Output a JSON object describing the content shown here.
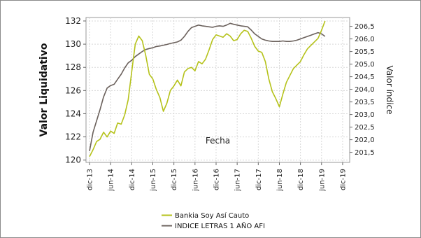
{
  "chart_data": {
    "type": "line",
    "xlabel": "Fecha",
    "ylabel_left": "Valor Liquidativo",
    "ylabel_right": "Valor índice",
    "x_ticks": [
      "dic-13",
      "jun-14",
      "dic-14",
      "jun-15",
      "dic-15",
      "jun-16",
      "dic-16",
      "jun-17",
      "dic-17",
      "jun-18",
      "dic-18",
      "jun-19",
      "dic-19"
    ],
    "y_left_ticks": [
      "120",
      "122",
      "124",
      "126",
      "128",
      "130",
      "132"
    ],
    "y_right_ticks": [
      "201,5",
      "202,0",
      "202,5",
      "203,0",
      "203,5",
      "204,0",
      "204,5",
      "205,0",
      "205,5",
      "206,0",
      "206,5"
    ],
    "ylim_left": [
      119.8,
      132.3
    ],
    "ylim_right": [
      201.1,
      206.85
    ],
    "grid": true,
    "legend_position": "bottom",
    "series": [
      {
        "name": "Bankia Soy Así Cauto",
        "axis": "left",
        "color": "#b5c21a",
        "points": [
          [
            "dic-13",
            120.3
          ],
          [
            "ene-14",
            120.9
          ],
          [
            "feb-14",
            121.6
          ],
          [
            "mar-14",
            121.8
          ],
          [
            "abr-14",
            122.4
          ],
          [
            "may-14",
            122.0
          ],
          [
            "jun-14",
            122.5
          ],
          [
            "jul-14",
            122.3
          ],
          [
            "ago-14",
            123.2
          ],
          [
            "sep-14",
            123.1
          ],
          [
            "oct-14",
            123.9
          ],
          [
            "nov-14",
            125.2
          ],
          [
            "dic-14",
            127.6
          ],
          [
            "ene-15",
            130.0
          ],
          [
            "feb-15",
            130.7
          ],
          [
            "mar-15",
            130.3
          ],
          [
            "abr-15",
            129.0
          ],
          [
            "may-15",
            127.4
          ],
          [
            "jun-15",
            127.0
          ],
          [
            "jul-15",
            126.1
          ],
          [
            "ago-15",
            125.4
          ],
          [
            "sep-15",
            124.2
          ],
          [
            "oct-15",
            124.9
          ],
          [
            "nov-15",
            126.0
          ],
          [
            "dic-15",
            126.4
          ],
          [
            "ene-16",
            126.9
          ],
          [
            "feb-16",
            126.4
          ],
          [
            "mar-16",
            127.6
          ],
          [
            "abr-16",
            127.9
          ],
          [
            "may-16",
            128.0
          ],
          [
            "jun-16",
            127.7
          ],
          [
            "jul-16",
            128.5
          ],
          [
            "ago-16",
            128.3
          ],
          [
            "sep-16",
            128.7
          ],
          [
            "oct-16",
            129.5
          ],
          [
            "nov-16",
            130.4
          ],
          [
            "dic-16",
            130.8
          ],
          [
            "ene-17",
            130.7
          ],
          [
            "feb-17",
            130.6
          ],
          [
            "mar-17",
            130.9
          ],
          [
            "abr-17",
            130.7
          ],
          [
            "may-17",
            130.3
          ],
          [
            "jun-17",
            130.4
          ],
          [
            "jul-17",
            130.9
          ],
          [
            "ago-17",
            131.2
          ],
          [
            "sep-17",
            131.1
          ],
          [
            "oct-17",
            130.5
          ],
          [
            "nov-17",
            129.8
          ],
          [
            "dic-17",
            129.4
          ],
          [
            "ene-18",
            129.3
          ],
          [
            "feb-18",
            128.5
          ],
          [
            "mar-18",
            127.0
          ],
          [
            "abr-18",
            125.9
          ],
          [
            "may-18",
            125.3
          ],
          [
            "jun-18",
            124.6
          ],
          [
            "jul-18",
            125.7
          ],
          [
            "ago-18",
            126.7
          ],
          [
            "sep-18",
            127.3
          ],
          [
            "oct-18",
            127.9
          ],
          [
            "nov-18",
            128.2
          ],
          [
            "dic-18",
            128.5
          ],
          [
            "ene-19",
            129.1
          ],
          [
            "feb-19",
            129.6
          ],
          [
            "mar-19",
            129.9
          ],
          [
            "abr-19",
            130.2
          ],
          [
            "may-19",
            130.5
          ],
          [
            "jun-19",
            131.2
          ],
          [
            "jul-19",
            132.0
          ]
        ]
      },
      {
        "name": "INDICE LETRAS 1 AÑO AFI",
        "axis": "right",
        "color": "#6b615c",
        "points": [
          [
            "dic-13",
            201.55
          ],
          [
            "ene-14",
            202.3
          ],
          [
            "feb-14",
            202.75
          ],
          [
            "mar-14",
            203.2
          ],
          [
            "abr-14",
            203.7
          ],
          [
            "may-14",
            204.05
          ],
          [
            "jun-14",
            204.15
          ],
          [
            "jul-14",
            204.2
          ],
          [
            "ago-14",
            204.4
          ],
          [
            "sep-14",
            204.6
          ],
          [
            "oct-14",
            204.85
          ],
          [
            "nov-14",
            205.05
          ],
          [
            "dic-14",
            205.15
          ],
          [
            "ene-15",
            205.3
          ],
          [
            "feb-15",
            205.4
          ],
          [
            "mar-15",
            205.5
          ],
          [
            "abr-15",
            205.58
          ],
          [
            "may-15",
            205.62
          ],
          [
            "jun-15",
            205.65
          ],
          [
            "jul-15",
            205.7
          ],
          [
            "ago-15",
            205.72
          ],
          [
            "sep-15",
            205.75
          ],
          [
            "oct-15",
            205.78
          ],
          [
            "nov-15",
            205.82
          ],
          [
            "dic-15",
            205.85
          ],
          [
            "ene-16",
            205.88
          ],
          [
            "feb-16",
            205.95
          ],
          [
            "mar-16",
            206.1
          ],
          [
            "abr-16",
            206.3
          ],
          [
            "may-16",
            206.45
          ],
          [
            "jun-16",
            206.5
          ],
          [
            "jul-16",
            206.55
          ],
          [
            "ago-16",
            206.52
          ],
          [
            "sep-16",
            206.5
          ],
          [
            "oct-16",
            206.48
          ],
          [
            "nov-16",
            206.46
          ],
          [
            "dic-16",
            206.5
          ],
          [
            "ene-17",
            206.52
          ],
          [
            "feb-17",
            206.5
          ],
          [
            "mar-17",
            206.55
          ],
          [
            "abr-17",
            206.62
          ],
          [
            "may-17",
            206.58
          ],
          [
            "jun-17",
            206.55
          ],
          [
            "jul-17",
            206.52
          ],
          [
            "ago-17",
            206.5
          ],
          [
            "sep-17",
            206.48
          ],
          [
            "oct-17",
            206.35
          ],
          [
            "nov-17",
            206.2
          ],
          [
            "dic-17",
            206.1
          ],
          [
            "ene-18",
            206.0
          ],
          [
            "feb-18",
            205.95
          ],
          [
            "mar-18",
            205.92
          ],
          [
            "abr-18",
            205.9
          ],
          [
            "may-18",
            205.9
          ],
          [
            "jun-18",
            205.9
          ],
          [
            "jul-18",
            205.92
          ],
          [
            "ago-18",
            205.9
          ],
          [
            "sep-18",
            205.9
          ],
          [
            "oct-18",
            205.92
          ],
          [
            "nov-18",
            205.95
          ],
          [
            "dic-18",
            206.0
          ],
          [
            "ene-19",
            206.05
          ],
          [
            "feb-19",
            206.1
          ],
          [
            "mar-19",
            206.15
          ],
          [
            "abr-19",
            206.2
          ],
          [
            "may-19",
            206.25
          ],
          [
            "jun-19",
            206.2
          ],
          [
            "jul-19",
            206.1
          ]
        ]
      }
    ]
  }
}
